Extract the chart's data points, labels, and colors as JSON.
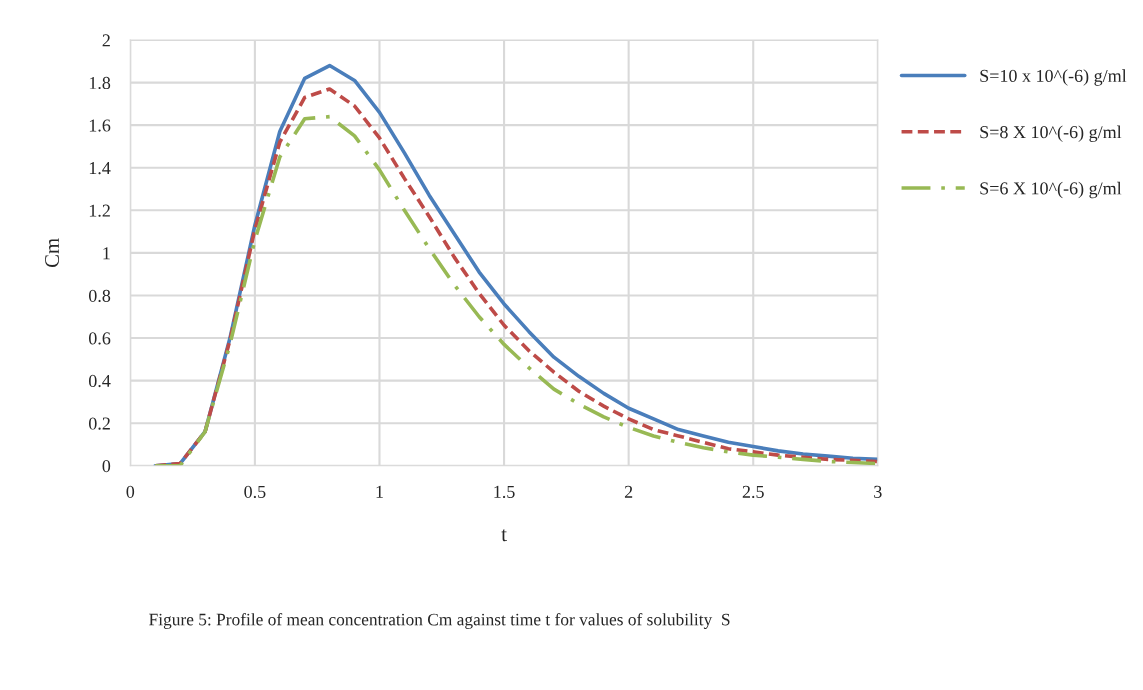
{
  "chart_data": {
    "type": "line",
    "xlabel": "t",
    "ylabel": "Cm",
    "x": [
      0.1,
      0.2,
      0.3,
      0.4,
      0.5,
      0.6,
      0.7,
      0.8,
      0.9,
      1.0,
      1.1,
      1.2,
      1.3,
      1.4,
      1.5,
      1.6,
      1.7,
      1.8,
      1.9,
      2.0,
      2.1,
      2.2,
      2.3,
      2.4,
      2.5,
      2.6,
      2.7,
      2.8,
      2.9,
      3.0
    ],
    "series": [
      {
        "name": "S=10 x 10^(-6) g/ml",
        "color": "#4a7ebb",
        "line_style": "solid",
        "values": [
          0,
          0.01,
          0.16,
          0.6,
          1.13,
          1.57,
          1.82,
          1.88,
          1.81,
          1.66,
          1.47,
          1.27,
          1.09,
          0.91,
          0.76,
          0.63,
          0.51,
          0.42,
          0.34,
          0.27,
          0.22,
          0.17,
          0.14,
          0.11,
          0.09,
          0.07,
          0.055,
          0.045,
          0.035,
          0.03
        ]
      },
      {
        "name": "S=8 X 10^(-6) g/ml",
        "color": "#be4b48",
        "line_style": "dashed",
        "values": [
          0,
          0.01,
          0.16,
          0.59,
          1.11,
          1.52,
          1.73,
          1.77,
          1.69,
          1.54,
          1.35,
          1.17,
          0.98,
          0.81,
          0.66,
          0.54,
          0.44,
          0.35,
          0.28,
          0.22,
          0.17,
          0.14,
          0.11,
          0.08,
          0.065,
          0.05,
          0.04,
          0.03,
          0.025,
          0.02
        ]
      },
      {
        "name": "S=6 X 10^(-6) g/ml",
        "color": "#98b954",
        "line_style": "dashdot",
        "values": [
          0,
          0,
          0.16,
          0.57,
          1.06,
          1.45,
          1.63,
          1.64,
          1.55,
          1.39,
          1.2,
          1.02,
          0.85,
          0.7,
          0.57,
          0.46,
          0.36,
          0.29,
          0.23,
          0.18,
          0.14,
          0.11,
          0.085,
          0.065,
          0.05,
          0.04,
          0.03,
          0.02,
          0.015,
          0.01
        ]
      }
    ],
    "xlim": [
      0,
      3
    ],
    "xticks": [
      0,
      0.5,
      1,
      1.5,
      2,
      2.5,
      3
    ],
    "ylim": [
      0,
      2
    ],
    "yticks": [
      0,
      0.2,
      0.4,
      0.6,
      0.8,
      1,
      1.2,
      1.4,
      1.6,
      1.8,
      2
    ],
    "grid": true,
    "legend": "right",
    "annotations": [
      "Figure 5: Profile of mean concentration Cm against time t for values of solubility  S"
    ]
  }
}
